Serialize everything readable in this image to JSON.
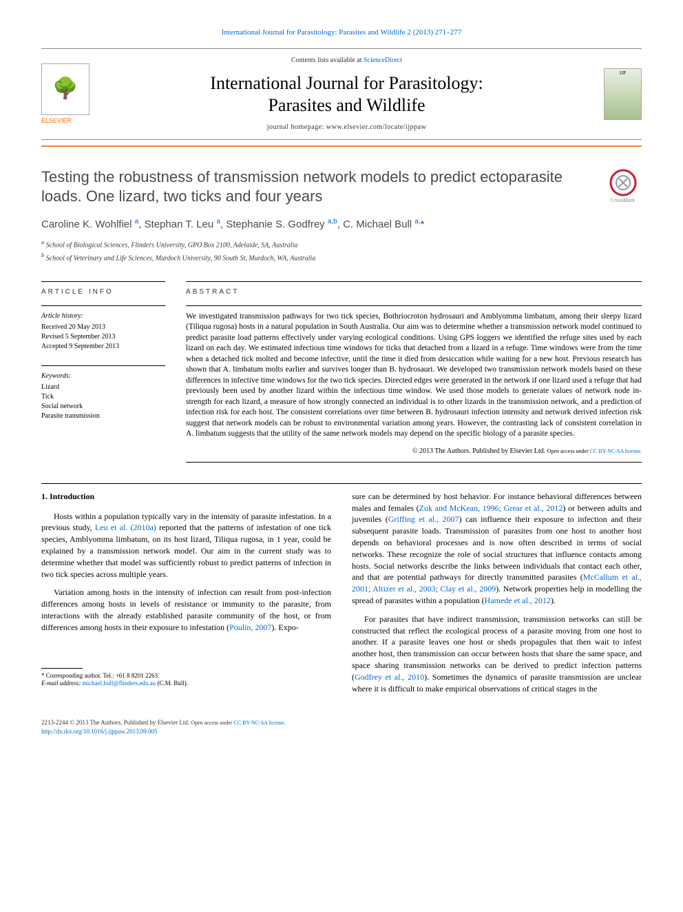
{
  "header": {
    "citation": "International Journal for Parasitology: Parasites and Wildlife 2 (2013) 271–277",
    "contents_line_prefix": "Contents lists available at ",
    "contents_link": "ScienceDirect",
    "journal_line1": "International Journal for Parasitology:",
    "journal_line2": "Parasites and Wildlife",
    "homepage_line": "journal homepage: www.elsevier.com/locate/ijppaw",
    "publisher": "ELSEVIER",
    "cover_label": "IJP"
  },
  "article": {
    "title": "Testing the robustness of transmission network models to predict ectoparasite loads. One lizard, two ticks and four years",
    "crossmark_label": "CrossMark",
    "authors_html": "Caroline K. Wohlfiel <sup>a</sup>, Stephan T. Leu <sup>a</sup>, Stephanie S. Godfrey <sup>a,b</sup>, C. Michael Bull <sup>a,</sup>*",
    "affiliations": [
      "a School of Biological Sciences, Flinders University, GPO Box 2100, Adelaide, SA, Australia",
      "b School of Veterinary and Life Sciences, Murdoch University, 90 South St, Murdoch, WA, Australia"
    ]
  },
  "info": {
    "heading": "ARTICLE INFO",
    "history_label": "Article history:",
    "history": [
      "Received 20 May 2013",
      "Revised 5 September 2013",
      "Accepted 9 September 2013"
    ],
    "keywords_label": "Keywords:",
    "keywords": [
      "Lizard",
      "Tick",
      "Social network",
      "Parasite transmission"
    ]
  },
  "abstract": {
    "heading": "ABSTRACT",
    "text": "We investigated transmission pathways for two tick species, Bothriocroton hydrosauri and Amblyomma limbatum, among their sleepy lizard (Tiliqua rugosa) hosts in a natural population in South Australia. Our aim was to determine whether a transmission network model continued to predict parasite load patterns effectively under varying ecological conditions. Using GPS loggers we identified the refuge sites used by each lizard on each day. We estimated infectious time windows for ticks that detached from a lizard in a refuge. Time windows were from the time when a detached tick molted and become infective, until the time it died from desiccation while waiting for a new host. Previous research has shown that A. limbatum molts earlier and survives longer than B. hydrosauri. We developed two transmission network models based on these differences in infective time windows for the two tick species. Directed edges were generated in the network if one lizard used a refuge that had previously been used by another lizard within the infectious time window. We used those models to generate values of network node in-strength for each lizard, a measure of how strongly connected an individual is to other lizards in the transmission network, and a prediction of infection risk for each host. The consistent correlations over time between B. hydrosauri infection intensity and network derived infection risk suggest that network models can be robust to environmental variation among years. However, the contrasting lack of consistent correlation in A. limbatum suggests that the utility of the same network models may depend on the specific biology of a parasite species.",
    "copyright_prefix": "© 2013 The Authors. Published by Elsevier Ltd. ",
    "license_text": "Open access under ",
    "license_link": "CC BY-NC-SA license."
  },
  "body": {
    "section_heading": "1. Introduction",
    "col1_p1_pre": "Hosts within a population typically vary in the intensity of parasite infestation. In a previous study, ",
    "col1_p1_link1": "Leu et al. (2010a)",
    "col1_p1_post": " reported that the patterns of infestation of one tick species, Amblyomma limbatum, on its host lizard, Tiliqua rugosa, in 1 year, could be explained by a transmission network model. Our aim in the current study was to determine whether that model was sufficiently robust to predict patterns of infection in two tick species across multiple years.",
    "col1_p2_pre": "Variation among hosts in the intensity of infection can result from post-infection differences among hosts in levels of resistance or immunity to the parasite, from interactions with the already established parasite community of the host, or from differences among hosts in their exposure to infestation (",
    "col1_p2_link1": "Poulin, 2007",
    "col1_p2_post": "). Expo-",
    "col2_p1_pre": "sure can be determined by host behavior. For instance behavioral differences between males and females (",
    "col2_p1_link1": "Zuk and McKean, 1996; Grear et al., 2012",
    "col2_p1_mid1": ") or between adults and juveniles (",
    "col2_p1_link2": "Griffing et al., 2007",
    "col2_p1_mid2": ") can influence their exposure to infection and their subsequent parasite loads. Transmission of parasites from one host to another host depends on behavioral processes and is now often described in terms of social networks. These recognize the role of social structures that influence contacts among hosts. Social networks describe the links between individuals that contact each other, and that are potential pathways for directly transmitted parasites (",
    "col2_p1_link3": "McCallum et al., 2001; Altizer et al., 2003; Clay et al., 2009",
    "col2_p1_mid3": "). Network properties help in modelling the spread of parasites within a population (",
    "col2_p1_link4": "Hamede et al., 2012",
    "col2_p1_post": ").",
    "col2_p2_pre": "For parasites that have indirect transmission, transmission networks can still be constructed that reflect the ecological process of a parasite moving from one host to another. If a parasite leaves one host or sheds propagules that then wait to infest another host, then transmission can occur between hosts that share the same space, and space sharing transmission networks can be derived to predict infection patterns (",
    "col2_p2_link1": "Godfrey et al., 2010",
    "col2_p2_post": "). Sometimes the dynamics of parasite transmission are unclear where it is difficult to make empirical observations of critical stages in the"
  },
  "footnote": {
    "corr": "* Corresponding author. Tel.: +61 8 8201 2263.",
    "email_label": "E-mail address:",
    "email": "michael.bull@flinders.edu.au",
    "email_suffix": "(C.M. Bull)."
  },
  "footer": {
    "line1_pre": "2213-2244 © 2013 The Authors. Published by Elsevier Ltd. ",
    "line1_license": "Open access under ",
    "line1_link": "CC BY-NC-SA license.",
    "doi": "http://dx.doi.org/10.1016/j.ijppaw.2013.09.005"
  }
}
